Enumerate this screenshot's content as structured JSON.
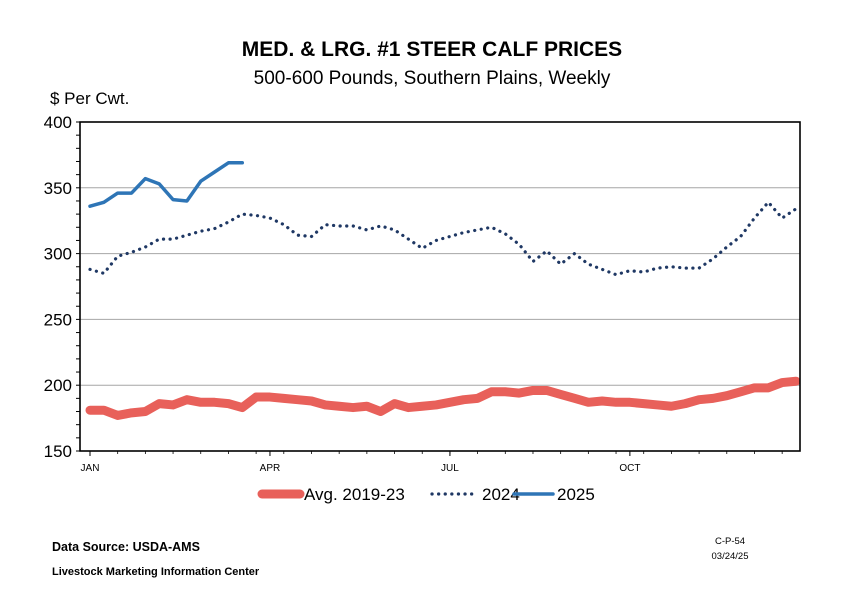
{
  "chart_data": {
    "type": "line",
    "title": "MED. & LRG. #1 STEER CALF PRICES",
    "subtitle": "500-600 Pounds, Southern Plains, Weekly",
    "ylabel": "$ Per Cwt.",
    "xlabel": "",
    "ylim": [
      150,
      400
    ],
    "yticks": [
      150,
      200,
      250,
      300,
      350,
      400
    ],
    "xlim": [
      1,
      52
    ],
    "xticks": [
      {
        "label": "JAN",
        "week": 1
      },
      {
        "label": "APR",
        "week": 14
      },
      {
        "label": "JUL",
        "week": 27
      },
      {
        "label": "OCT",
        "week": 40
      }
    ],
    "grid": true,
    "legend_position": "bottom",
    "series": [
      {
        "name": "Avg. 2019-23",
        "style": "thick-solid",
        "color": "#e8605a",
        "values": [
          181,
          181,
          177,
          179,
          180,
          186,
          185,
          189,
          187,
          187,
          186,
          183,
          191,
          191,
          190,
          189,
          188,
          185,
          184,
          183,
          184,
          180,
          186,
          183,
          184,
          185,
          187,
          189,
          190,
          195,
          195,
          194,
          196,
          196,
          193,
          190,
          187,
          188,
          187,
          187,
          186,
          185,
          184,
          186,
          189,
          190,
          192,
          195,
          198,
          198,
          202,
          203
        ]
      },
      {
        "name": "2024",
        "style": "dotted",
        "color": "#1f3864",
        "values": [
          288,
          285,
          298,
          301,
          305,
          311,
          311,
          314,
          317,
          319,
          324,
          330,
          329,
          327,
          322,
          314,
          313,
          322,
          321,
          321,
          318,
          321,
          318,
          311,
          304,
          310,
          313,
          316,
          318,
          320,
          315,
          307,
          294,
          302,
          292,
          300,
          292,
          288,
          284,
          287,
          286,
          289,
          290,
          289,
          289,
          296,
          305,
          313,
          327,
          339,
          327,
          334
        ]
      },
      {
        "name": "2025",
        "style": "solid",
        "color": "#2e75b6",
        "values": [
          336,
          339,
          346,
          346,
          357,
          353,
          341,
          340,
          355,
          362,
          369,
          369
        ]
      }
    ]
  },
  "footer": {
    "source": "Data Source:  USDA-AMS",
    "organization": "Livestock Marketing Information Center",
    "code": "C-P-54",
    "date": "03/24/25"
  }
}
